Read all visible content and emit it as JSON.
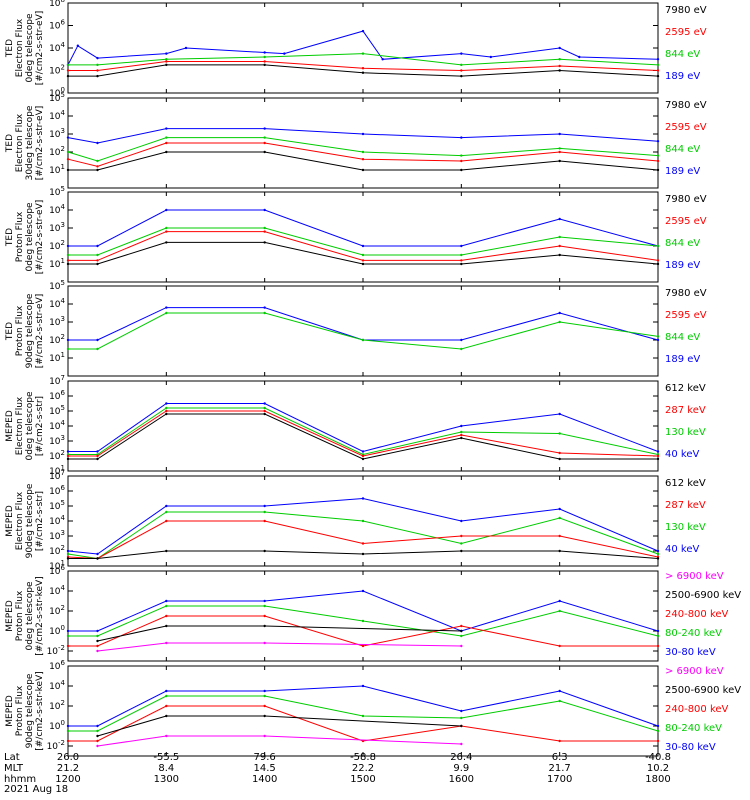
{
  "chart_data": [
    {
      "type": "line",
      "ylabel": [
        "TED",
        "Electron Flux",
        "0deg telescope",
        "[#/cm2-s-str-eV]"
      ],
      "y_log": true,
      "ylim_exp": [
        0,
        8
      ],
      "ytick_exps": [
        0,
        2,
        4,
        6,
        8
      ],
      "legend": [
        {
          "name": "7980 eV",
          "color": "#000000"
        },
        {
          "name": "2595 eV",
          "color": "#ff0000"
        },
        {
          "name": "844 eV",
          "color": "#00cc00"
        },
        {
          "name": "189 eV",
          "color": "#0000ff"
        }
      ],
      "series": [
        {
          "name": "189 eV",
          "color": "#0000ff",
          "x": [
            1200,
            1210,
            1230,
            1300,
            1320,
            1400,
            1420,
            1500,
            1520,
            1600,
            1630,
            1700,
            1720,
            1800
          ],
          "values": [
            2.5,
            4.2,
            3.1,
            3.5,
            4.0,
            3.6,
            3.5,
            5.5,
            3.0,
            3.5,
            3.2,
            4.0,
            3.2,
            3.0
          ]
        },
        {
          "name": "844 eV",
          "color": "#00cc00",
          "x": [
            1200,
            1230,
            1300,
            1400,
            1500,
            1600,
            1700,
            1800
          ],
          "values": [
            2.5,
            2.5,
            3.0,
            3.2,
            3.5,
            2.5,
            3.0,
            2.5
          ]
        },
        {
          "name": "2595 eV",
          "color": "#ff0000",
          "x": [
            1200,
            1230,
            1300,
            1400,
            1500,
            1600,
            1700,
            1800
          ],
          "values": [
            2.0,
            2.0,
            2.8,
            2.8,
            2.2,
            2.0,
            2.4,
            2.0
          ]
        },
        {
          "name": "7980 eV",
          "color": "#000000",
          "x": [
            1200,
            1230,
            1300,
            1400,
            1500,
            1600,
            1700,
            1800
          ],
          "values": [
            1.5,
            1.5,
            2.5,
            2.5,
            1.8,
            1.5,
            2.0,
            1.5
          ]
        }
      ]
    },
    {
      "type": "line",
      "ylabel": [
        "TED",
        "Electron Flux",
        "30deg telescope",
        "[#/cm2-s-str-eV]"
      ],
      "y_log": true,
      "ylim_exp": [
        0,
        5
      ],
      "ytick_exps": [
        1,
        2,
        3,
        4,
        5
      ],
      "legend": [
        {
          "name": "7980 eV",
          "color": "#000000"
        },
        {
          "name": "2595 eV",
          "color": "#ff0000"
        },
        {
          "name": "844 eV",
          "color": "#00cc00"
        },
        {
          "name": "189 eV",
          "color": "#0000ff"
        }
      ],
      "series": [
        {
          "name": "189 eV",
          "color": "#0000ff",
          "x": [
            1200,
            1230,
            1300,
            1400,
            1500,
            1600,
            1700,
            1800
          ],
          "values": [
            2.8,
            2.5,
            3.3,
            3.3,
            3.0,
            2.8,
            3.0,
            2.6
          ]
        },
        {
          "name": "844 eV",
          "color": "#00cc00",
          "x": [
            1200,
            1230,
            1300,
            1400,
            1500,
            1600,
            1700,
            1800
          ],
          "values": [
            2.0,
            1.5,
            2.8,
            2.8,
            2.0,
            1.8,
            2.2,
            1.8
          ]
        },
        {
          "name": "2595 eV",
          "color": "#ff0000",
          "x": [
            1200,
            1230,
            1300,
            1400,
            1500,
            1600,
            1700,
            1800
          ],
          "values": [
            1.6,
            1.2,
            2.5,
            2.5,
            1.6,
            1.5,
            2.0,
            1.5
          ]
        },
        {
          "name": "7980 eV",
          "color": "#000000",
          "x": [
            1200,
            1230,
            1300,
            1400,
            1500,
            1600,
            1700,
            1800
          ],
          "values": [
            1.0,
            1.0,
            2.0,
            2.0,
            1.0,
            1.0,
            1.5,
            1.0
          ]
        }
      ]
    },
    {
      "type": "line",
      "ylabel": [
        "TED",
        "Proton Flux",
        "0deg telescope",
        "[#/cm2-s-str-eV]"
      ],
      "y_log": true,
      "ylim_exp": [
        0,
        5
      ],
      "ytick_exps": [
        1,
        2,
        3,
        4,
        5
      ],
      "legend": [
        {
          "name": "7980 eV",
          "color": "#000000"
        },
        {
          "name": "2595 eV",
          "color": "#ff0000"
        },
        {
          "name": "844 eV",
          "color": "#00cc00"
        },
        {
          "name": "189 eV",
          "color": "#0000ff"
        }
      ],
      "series": [
        {
          "name": "189 eV",
          "color": "#0000ff",
          "x": [
            1200,
            1230,
            1300,
            1400,
            1500,
            1600,
            1700,
            1800
          ],
          "values": [
            2.0,
            2.0,
            4.0,
            4.0,
            2.0,
            2.0,
            3.5,
            2.0
          ]
        },
        {
          "name": "844 eV",
          "color": "#00cc00",
          "x": [
            1200,
            1230,
            1300,
            1400,
            1500,
            1600,
            1700,
            1800
          ],
          "values": [
            1.5,
            1.5,
            3.0,
            3.0,
            1.5,
            1.5,
            2.5,
            2.0
          ]
        },
        {
          "name": "2595 eV",
          "color": "#ff0000",
          "x": [
            1200,
            1230,
            1300,
            1400,
            1500,
            1600,
            1700,
            1800
          ],
          "values": [
            1.2,
            1.2,
            2.8,
            2.8,
            1.2,
            1.2,
            2.0,
            1.2
          ]
        },
        {
          "name": "7980 eV",
          "color": "#000000",
          "x": [
            1200,
            1230,
            1300,
            1400,
            1500,
            1600,
            1700,
            1800
          ],
          "values": [
            1.0,
            1.0,
            2.2,
            2.2,
            1.0,
            1.0,
            1.5,
            1.0
          ]
        }
      ]
    },
    {
      "type": "line",
      "ylabel": [
        "TED",
        "Proton Flux",
        "90deg telescope",
        "[#/cm2-s-str-eV]"
      ],
      "y_log": true,
      "ylim_exp": [
        0,
        5
      ],
      "ytick_exps": [
        1,
        2,
        3,
        4,
        5
      ],
      "legend": [
        {
          "name": "7980 eV",
          "color": "#000000"
        },
        {
          "name": "2595 eV",
          "color": "#ff0000"
        },
        {
          "name": "844 eV",
          "color": "#00cc00"
        },
        {
          "name": "189 eV",
          "color": "#0000ff"
        }
      ],
      "series": [
        {
          "name": "189 eV",
          "color": "#0000ff",
          "x": [
            1200,
            1230,
            1300,
            1400,
            1500,
            1600,
            1700,
            1800
          ],
          "values": [
            2.0,
            2.0,
            3.8,
            3.8,
            2.0,
            2.0,
            3.5,
            2.0
          ]
        },
        {
          "name": "844 eV",
          "color": "#00cc00",
          "x": [
            1200,
            1230,
            1300,
            1400,
            1500,
            1600,
            1700,
            1800
          ],
          "values": [
            1.5,
            1.5,
            3.5,
            3.5,
            2.0,
            1.5,
            3.0,
            2.2
          ]
        }
      ]
    },
    {
      "type": "line",
      "ylabel": [
        "MEPED",
        "Electron Flux",
        "0deg telescope",
        "[#/cm2-s-str]"
      ],
      "y_log": true,
      "ylim_exp": [
        1,
        7
      ],
      "ytick_exps": [
        1,
        2,
        3,
        4,
        5,
        6,
        7
      ],
      "legend": [
        {
          "name": "612 keV",
          "color": "#000000"
        },
        {
          "name": "287 keV",
          "color": "#ff0000"
        },
        {
          "name": "130 keV",
          "color": "#00cc00"
        },
        {
          "name": "40 keV",
          "color": "#0000ff"
        }
      ],
      "series": [
        {
          "name": "40 keV",
          "color": "#0000ff",
          "x": [
            1200,
            1230,
            1300,
            1400,
            1500,
            1600,
            1700,
            1800
          ],
          "values": [
            2.3,
            2.3,
            5.5,
            5.5,
            2.3,
            4.0,
            4.8,
            2.3
          ]
        },
        {
          "name": "130 keV",
          "color": "#00cc00",
          "x": [
            1200,
            1230,
            1300,
            1400,
            1500,
            1600,
            1700,
            1800
          ],
          "values": [
            2.1,
            2.1,
            5.2,
            5.2,
            2.1,
            3.6,
            3.5,
            2.1
          ]
        },
        {
          "name": "287 keV",
          "color": "#ff0000",
          "x": [
            1200,
            1230,
            1300,
            1400,
            1500,
            1600,
            1700,
            1800
          ],
          "values": [
            2.0,
            2.0,
            5.0,
            5.0,
            2.0,
            3.4,
            2.2,
            2.0
          ]
        },
        {
          "name": "612 keV",
          "color": "#000000",
          "x": [
            1200,
            1230,
            1300,
            1400,
            1500,
            1600,
            1700,
            1800
          ],
          "values": [
            1.8,
            1.8,
            4.8,
            4.8,
            1.8,
            3.2,
            1.8,
            1.8
          ]
        }
      ]
    },
    {
      "type": "line",
      "ylabel": [
        "MEPED",
        "Electron Flux",
        "90deg telescope",
        "[#/cm2-s-str]"
      ],
      "y_log": true,
      "ylim_exp": [
        1,
        7
      ],
      "ytick_exps": [
        1,
        2,
        3,
        4,
        5,
        6,
        7
      ],
      "legend": [
        {
          "name": "612 keV",
          "color": "#000000"
        },
        {
          "name": "287 keV",
          "color": "#ff0000"
        },
        {
          "name": "130 keV",
          "color": "#00cc00"
        },
        {
          "name": "40 keV",
          "color": "#0000ff"
        }
      ],
      "series": [
        {
          "name": "40 keV",
          "color": "#0000ff",
          "x": [
            1200,
            1230,
            1300,
            1400,
            1500,
            1600,
            1700,
            1800
          ],
          "values": [
            2.0,
            1.8,
            5.0,
            5.0,
            5.5,
            4.0,
            4.8,
            2.0
          ]
        },
        {
          "name": "130 keV",
          "color": "#00cc00",
          "x": [
            1200,
            1230,
            1300,
            1400,
            1500,
            1600,
            1700,
            1800
          ],
          "values": [
            1.8,
            1.5,
            4.6,
            4.6,
            4.0,
            2.5,
            4.2,
            1.8
          ]
        },
        {
          "name": "287 keV",
          "color": "#ff0000",
          "x": [
            1200,
            1230,
            1300,
            1400,
            1500,
            1600,
            1700,
            1800
          ],
          "values": [
            1.6,
            1.5,
            4.0,
            4.0,
            2.5,
            3.0,
            3.0,
            1.6
          ]
        },
        {
          "name": "612 keV",
          "color": "#000000",
          "x": [
            1200,
            1230,
            1300,
            1400,
            1500,
            1600,
            1700,
            1800
          ],
          "values": [
            1.5,
            1.5,
            2.0,
            2.0,
            1.8,
            2.0,
            2.0,
            1.5
          ]
        }
      ]
    },
    {
      "type": "line",
      "ylabel": [
        "MEPED",
        "Proton Flux",
        "0deg telescope",
        "[#/cm2-s-str-keV]"
      ],
      "y_log": true,
      "ylim_exp": [
        -3,
        6
      ],
      "ytick_exps": [
        -2,
        0,
        2,
        4,
        6
      ],
      "legend": [
        {
          "name": "> 6900 keV",
          "color": "#ff00ff"
        },
        {
          "name": "2500-6900 keV",
          "color": "#000000"
        },
        {
          "name": "240-800 keV",
          "color": "#ff0000"
        },
        {
          "name": "80-240 keV",
          "color": "#00cc00"
        },
        {
          "name": "30-80 keV",
          "color": "#0000ff"
        }
      ],
      "series": [
        {
          "name": "30-80 keV",
          "color": "#0000ff",
          "x": [
            1200,
            1230,
            1300,
            1400,
            1500,
            1600,
            1700,
            1800
          ],
          "values": [
            0.0,
            0.0,
            3.0,
            3.0,
            4.0,
            0.0,
            3.0,
            0.0
          ]
        },
        {
          "name": "80-240 keV",
          "color": "#00cc00",
          "x": [
            1200,
            1230,
            1300,
            1400,
            1500,
            1600,
            1700,
            1800
          ],
          "values": [
            -0.5,
            -0.5,
            2.5,
            2.5,
            1.0,
            -0.5,
            2.0,
            -0.5
          ]
        },
        {
          "name": "240-800 keV",
          "color": "#ff0000",
          "x": [
            1200,
            1230,
            1300,
            1400,
            1500,
            1600,
            1700,
            1800
          ],
          "values": [
            -1.5,
            -1.5,
            1.5,
            1.5,
            -1.5,
            0.5,
            -1.5,
            -1.5
          ]
        },
        {
          "name": "2500-6900 keV",
          "color": "#000000",
          "x": [
            1230,
            1300,
            1400,
            1600
          ],
          "values": [
            -1.0,
            0.5,
            0.5,
            0.0
          ]
        },
        {
          "name": "> 6900 keV",
          "color": "#ff00ff",
          "x": [
            1230,
            1300,
            1400,
            1600
          ],
          "values": [
            -2.0,
            -1.2,
            -1.2,
            -1.5
          ]
        }
      ]
    },
    {
      "type": "line",
      "ylabel": [
        "MEPED",
        "Proton Flux",
        "90deg telescope",
        "[#/cm2-s-str-keV]"
      ],
      "y_log": true,
      "ylim_exp": [
        -3,
        6
      ],
      "ytick_exps": [
        -2,
        0,
        2,
        4,
        6
      ],
      "legend": [
        {
          "name": "> 6900 keV",
          "color": "#ff00ff"
        },
        {
          "name": "2500-6900 keV",
          "color": "#000000"
        },
        {
          "name": "240-800 keV",
          "color": "#ff0000"
        },
        {
          "name": "80-240 keV",
          "color": "#00cc00"
        },
        {
          "name": "30-80 keV",
          "color": "#0000ff"
        }
      ],
      "series": [
        {
          "name": "30-80 keV",
          "color": "#0000ff",
          "x": [
            1200,
            1230,
            1300,
            1400,
            1500,
            1600,
            1700,
            1800
          ],
          "values": [
            0.0,
            0.0,
            3.5,
            3.5,
            4.0,
            1.5,
            3.5,
            0.0
          ]
        },
        {
          "name": "80-240 keV",
          "color": "#00cc00",
          "x": [
            1200,
            1230,
            1300,
            1400,
            1500,
            1600,
            1700,
            1800
          ],
          "values": [
            -0.5,
            -0.5,
            3.0,
            3.0,
            1.0,
            0.8,
            2.5,
            -0.5
          ]
        },
        {
          "name": "240-800 keV",
          "color": "#ff0000",
          "x": [
            1200,
            1230,
            1300,
            1400,
            1500,
            1600,
            1700,
            1800
          ],
          "values": [
            -1.5,
            -1.5,
            2.0,
            2.0,
            -1.5,
            0.0,
            -1.5,
            -1.5
          ]
        },
        {
          "name": "2500-6900 keV",
          "color": "#000000",
          "x": [
            1230,
            1300,
            1400,
            1600
          ],
          "values": [
            -1.0,
            1.0,
            1.0,
            0.0
          ]
        },
        {
          "name": "> 6900 keV",
          "color": "#ff00ff",
          "x": [
            1230,
            1300,
            1400,
            1600
          ],
          "values": [
            -2.0,
            -1.0,
            -1.0,
            -1.8
          ]
        }
      ]
    }
  ],
  "x_axis": {
    "xlim": [
      1200,
      1800
    ],
    "row_labels": [
      "Lat",
      "MLT",
      "hhmm"
    ],
    "ticks": [
      {
        "x": 1200,
        "lat": "26.0",
        "mlt": "21.2",
        "hhmm": "1200"
      },
      {
        "x": 1300,
        "lat": "-55.5",
        "mlt": "8.4",
        "hhmm": "1300"
      },
      {
        "x": 1400,
        "lat": "79.6",
        "mlt": "14.5",
        "hhmm": "1400"
      },
      {
        "x": 1500,
        "lat": "-58.8",
        "mlt": "22.2",
        "hhmm": "1500"
      },
      {
        "x": 1600,
        "lat": "26.4",
        "mlt": "9.9",
        "hhmm": "1600"
      },
      {
        "x": 1700,
        "lat": "6.3",
        "mlt": "21.7",
        "hhmm": "1700"
      },
      {
        "x": 1800,
        "lat": "-40.8",
        "mlt": "10.2",
        "hhmm": "1800"
      }
    ],
    "date": "2021 Aug 18"
  }
}
